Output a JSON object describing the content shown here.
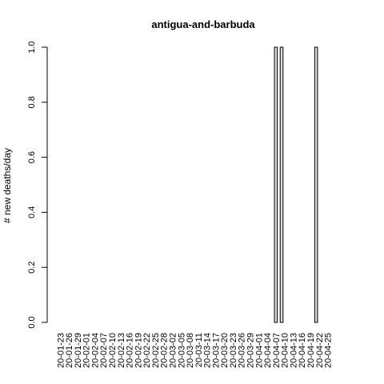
{
  "chart_data": {
    "type": "bar",
    "title": "antigua-and-barbuda",
    "ylabel": "# new deaths/day",
    "xlabel": "",
    "ylim": [
      0,
      1
    ],
    "yticks": [
      0.0,
      0.2,
      0.4,
      0.6,
      0.8,
      1.0
    ],
    "ytick_labels": [
      "0.0",
      "0.2",
      "0.4",
      "0.6",
      "0.8",
      "1.0"
    ],
    "xtick_labels": [
      "20-01-23",
      "20-01-26",
      "20-01-29",
      "20-02-01",
      "20-02-04",
      "20-02-07",
      "20-02-10",
      "20-02-13",
      "20-02-16",
      "20-02-19",
      "20-02-22",
      "20-02-25",
      "20-02-28",
      "20-03-02",
      "20-03-05",
      "20-03-08",
      "20-03-11",
      "20-03-14",
      "20-03-17",
      "20-03-20",
      "20-03-23",
      "20-03-26",
      "20-03-29",
      "20-04-01",
      "20-04-04",
      "20-04-07",
      "20-04-10",
      "20-04-13",
      "20-04-16",
      "20-04-19",
      "20-04-22",
      "20-04-25"
    ],
    "start_date": "2020-01-23",
    "values": [
      0,
      0,
      0,
      0,
      0,
      0,
      0,
      0,
      0,
      0,
      0,
      0,
      0,
      0,
      0,
      0,
      0,
      0,
      0,
      0,
      0,
      0,
      0,
      0,
      0,
      0,
      0,
      0,
      0,
      0,
      0,
      0,
      0,
      0,
      0,
      0,
      0,
      0,
      0,
      0,
      0,
      0,
      0,
      0,
      0,
      0,
      0,
      0,
      0,
      0,
      0,
      0,
      0,
      0,
      0,
      0,
      0,
      0,
      0,
      0,
      0,
      0,
      0,
      0,
      0,
      0,
      0,
      0,
      0,
      0,
      0,
      0,
      0,
      0,
      0,
      1,
      0,
      1,
      0,
      0,
      0,
      0,
      0,
      0,
      0,
      0,
      0,
      0,
      0,
      1,
      0,
      0,
      0,
      0,
      0,
      0,
      0,
      0,
      0,
      0,
      0
    ],
    "grid": false,
    "bar_color": "#d9d9d9"
  }
}
